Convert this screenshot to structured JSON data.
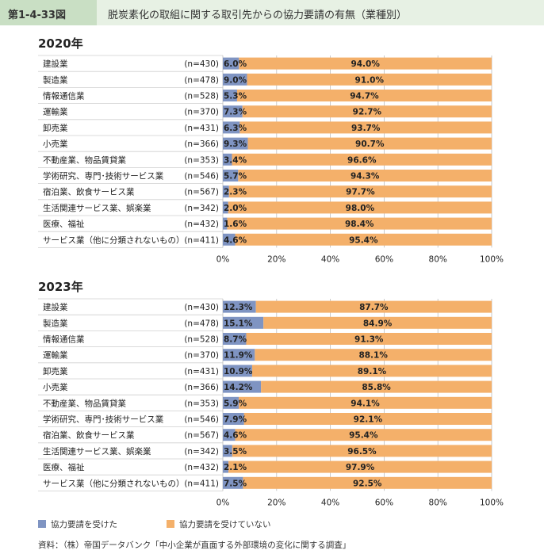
{
  "header": {
    "figure_number": "第1-4-33図",
    "title": "脱炭素化の取組に関する取引先からの協力要請の有無（業種別）"
  },
  "colors": {
    "requested": "#7f94c2",
    "not_requested": "#f4b06a",
    "header_bg": "#e7f1e4",
    "header_tag": "#c9dfc4"
  },
  "legend": {
    "requested": "協力要請を受けた",
    "not_requested": "協力要請を受けていない"
  },
  "source": "資料：（株）帝国データバンク「中小企業が直面する外部環境の変化に関する調査」",
  "chart_data": [
    {
      "type": "bar",
      "orientation": "horizontal",
      "stacked": true,
      "title": "2020年",
      "categories": [
        "建設業",
        "製造業",
        "情報通信業",
        "運輸業",
        "卸売業",
        "小売業",
        "不動産業、物品賃貸業",
        "学術研究、専門･技術サービス業",
        "宿泊業、飲食サービス業",
        "生活関連サービス業、娯楽業",
        "医療、福祉",
        "サービス業（他に分類されないもの）"
      ],
      "n_labels": [
        "(n=430)",
        "(n=478)",
        "(n=528)",
        "(n=370)",
        "(n=431)",
        "(n=366)",
        "(n=353)",
        "(n=546)",
        "(n=567)",
        "(n=342)",
        "(n=432)",
        "(n=411)"
      ],
      "series": [
        {
          "name": "協力要請を受けた",
          "values": [
            6.0,
            9.0,
            5.3,
            7.3,
            6.3,
            9.3,
            3.4,
            5.7,
            2.3,
            2.0,
            1.6,
            4.6
          ]
        },
        {
          "name": "協力要請を受けていない",
          "values": [
            94.0,
            91.0,
            94.7,
            92.7,
            93.7,
            90.7,
            96.6,
            94.3,
            97.7,
            98.0,
            98.4,
            95.4
          ]
        }
      ],
      "xlim": [
        0,
        100
      ],
      "xticks": [
        "0%",
        "20%",
        "40%",
        "60%",
        "80%",
        "100%"
      ],
      "grid": true,
      "legend_position": "bottom"
    },
    {
      "type": "bar",
      "orientation": "horizontal",
      "stacked": true,
      "title": "2023年",
      "categories": [
        "建設業",
        "製造業",
        "情報通信業",
        "運輸業",
        "卸売業",
        "小売業",
        "不動産業、物品賃貸業",
        "学術研究、専門･技術サービス業",
        "宿泊業、飲食サービス業",
        "生活関連サービス業、娯楽業",
        "医療、福祉",
        "サービス業（他に分類されないもの）"
      ],
      "n_labels": [
        "(n=430)",
        "(n=478)",
        "(n=528)",
        "(n=370)",
        "(n=431)",
        "(n=366)",
        "(n=353)",
        "(n=546)",
        "(n=567)",
        "(n=342)",
        "(n=432)",
        "(n=411)"
      ],
      "series": [
        {
          "name": "協力要請を受けた",
          "values": [
            12.3,
            15.1,
            8.7,
            11.9,
            10.9,
            14.2,
            5.9,
            7.9,
            4.6,
            3.5,
            2.1,
            7.5
          ]
        },
        {
          "name": "協力要請を受けていない",
          "values": [
            87.7,
            84.9,
            91.3,
            88.1,
            89.1,
            85.8,
            94.1,
            92.1,
            95.4,
            96.5,
            97.9,
            92.5
          ]
        }
      ],
      "xlim": [
        0,
        100
      ],
      "xticks": [
        "0%",
        "20%",
        "40%",
        "60%",
        "80%",
        "100%"
      ],
      "grid": true,
      "legend_position": "bottom"
    }
  ]
}
